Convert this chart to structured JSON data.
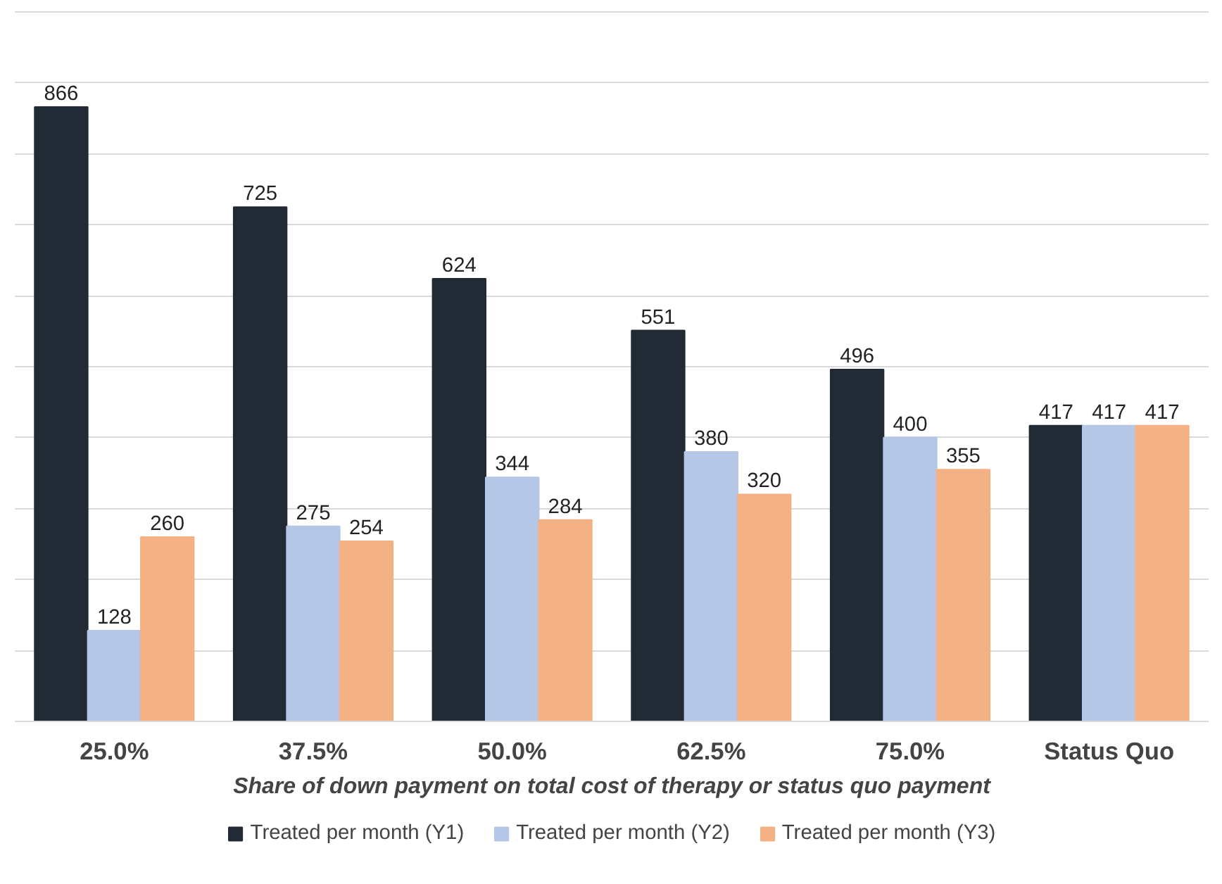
{
  "chart_data": {
    "type": "bar",
    "xlabel": "Share of down payment on total cost of therapy or status quo payment",
    "categories": [
      "25.0%",
      "37.5%",
      "50.0%",
      "62.5%",
      "75.0%",
      "Status Quo"
    ],
    "series": [
      {
        "name": "Treated per month (Y1)",
        "color": "#222a35",
        "values": [
          866,
          725,
          624,
          551,
          496,
          417
        ]
      },
      {
        "name": "Treated per month (Y2)",
        "color": "#b4c7e7",
        "values": [
          128,
          275,
          344,
          380,
          400,
          417
        ]
      },
      {
        "name": "Treated per month (Y3)",
        "color": "#f4b183",
        "values": [
          260,
          254,
          284,
          320,
          355,
          417
        ]
      }
    ],
    "ylim": [
      0,
      1000
    ],
    "yticks": [
      {
        "value": 0,
        "label": null
      },
      {
        "value": 100,
        "label": null
      },
      {
        "value": 200,
        "label": null
      },
      {
        "value": 300,
        "label": null
      },
      {
        "value": 400,
        "label": null
      },
      {
        "value": 500,
        "label": null
      },
      {
        "value": 600,
        "label": null
      },
      {
        "value": 700,
        "label": null
      },
      {
        "value": 800,
        "label": null
      },
      {
        "value": 900,
        "label": null
      },
      {
        "value": 1000,
        "label": null
      }
    ],
    "grid": "y",
    "legend": "bottom",
    "data_labels": true
  }
}
